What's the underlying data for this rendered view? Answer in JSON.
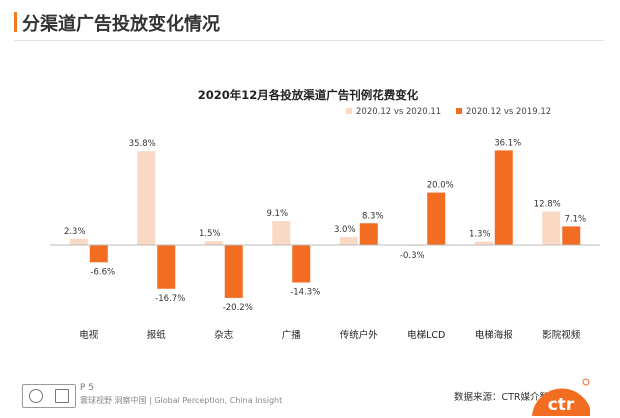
{
  "header": {
    "title": "分渠道广告投放变化情况"
  },
  "chart_data": {
    "type": "bar",
    "title": "2020年12月各投放渠道广告刊例花费变化",
    "categories": [
      "电视",
      "报纸",
      "杂志",
      "广播",
      "传统户外",
      "电梯LCD",
      "电梯海报",
      "影院视频"
    ],
    "series": [
      {
        "name": "2020.12 vs 2020.11",
        "color": "#fad9c4",
        "values": [
          2.3,
          35.8,
          1.5,
          9.1,
          3.0,
          -0.3,
          1.3,
          12.8
        ],
        "labels": [
          "2.3%",
          "35.8%",
          "1.5%",
          "9.1%",
          "3.0%",
          "-0.3%",
          "1.3%",
          "12.8%"
        ]
      },
      {
        "name": "2020.12 vs 2019.12",
        "color": "#f26d21",
        "values": [
          -6.6,
          -16.7,
          -20.2,
          -14.3,
          8.3,
          20.0,
          36.1,
          7.1
        ],
        "labels": [
          "-6.6%",
          "-16.7%",
          "-20.2%",
          "-14.3%",
          "8.3%",
          "20.0%",
          "36.1%",
          "7.1%"
        ]
      }
    ],
    "legend_position": "top-right",
    "grid": false,
    "ylim": [
      -25,
      40
    ]
  },
  "footer": {
    "page_number": "P 5",
    "tagline": "寰球视野 洞察中国 | Global Perception, China Insight",
    "source": "数据来源：CTR媒介智讯",
    "brand": "ctr"
  }
}
